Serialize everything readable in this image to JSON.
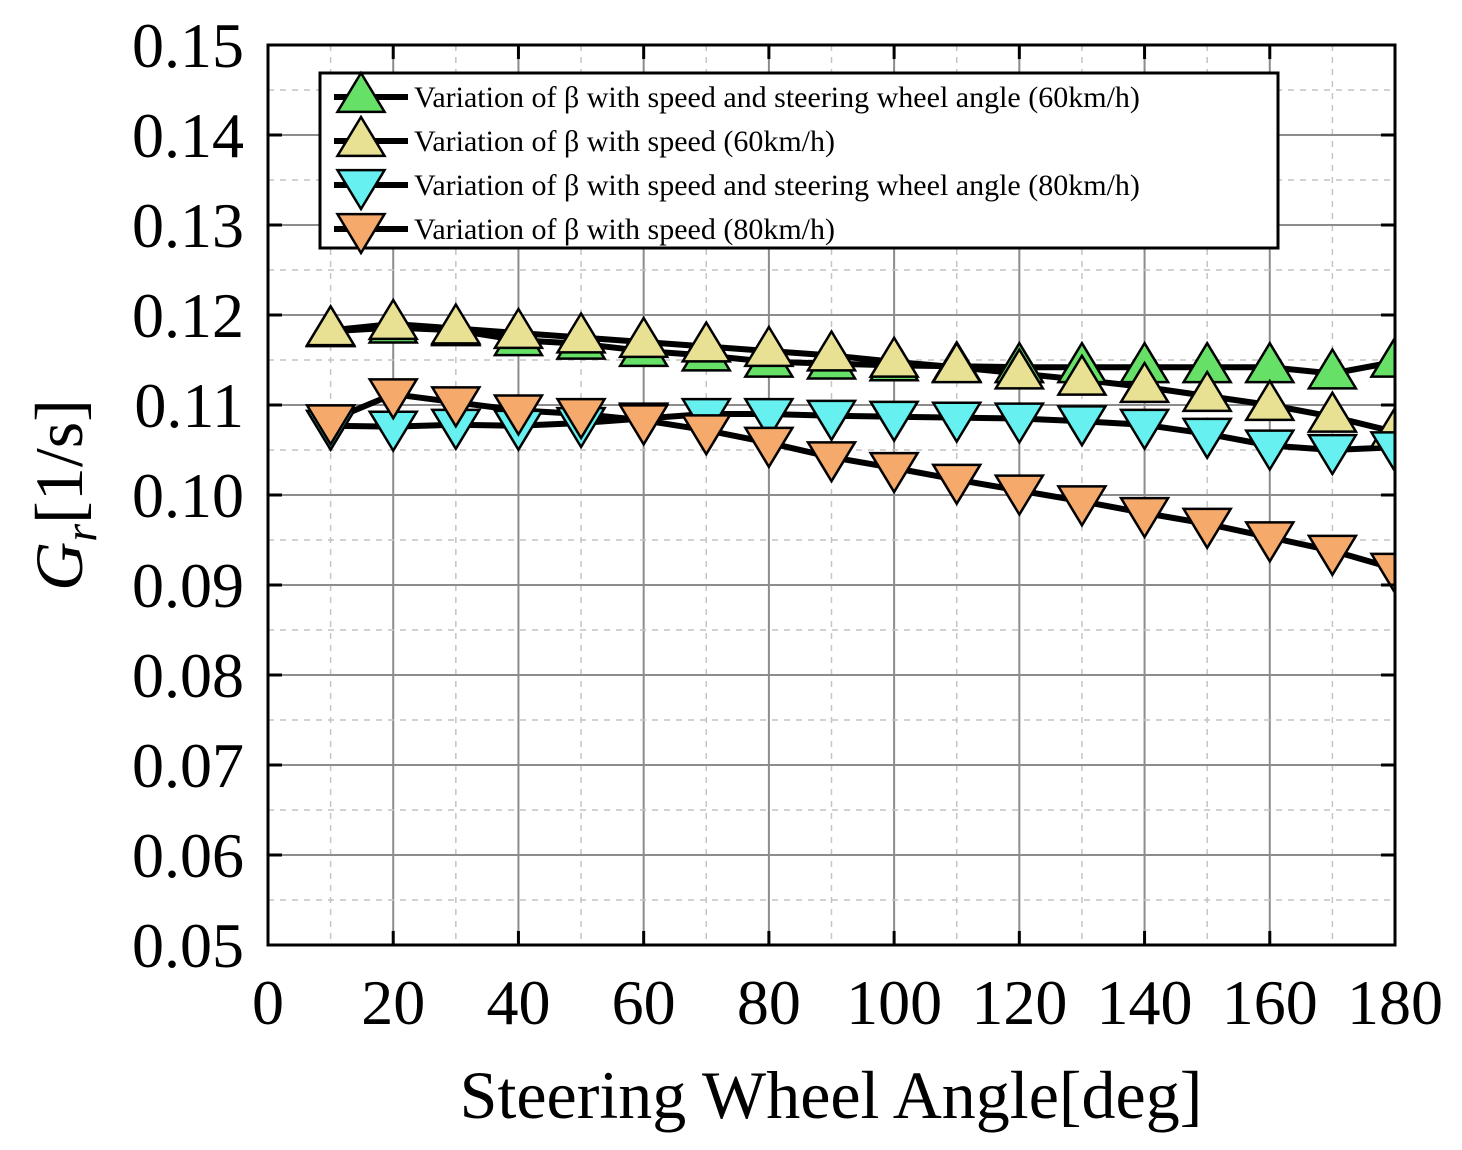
{
  "chart_data": {
    "type": "line",
    "xlabel": "Steering Wheel Angle[deg]",
    "ylabel": {
      "symbol": "G",
      "subscript": "r",
      "unit": "[1/s]"
    },
    "xlim": [
      0,
      180
    ],
    "ylim": [
      0.05,
      0.15
    ],
    "xticks": [
      0,
      20,
      40,
      60,
      80,
      100,
      120,
      140,
      160,
      180
    ],
    "xtick_labels": [
      "0",
      "20",
      "40",
      "60",
      "80",
      "100",
      "120",
      "140",
      "160",
      "180"
    ],
    "yticks": [
      0.05,
      0.06,
      0.07,
      0.08,
      0.09,
      0.1,
      0.11,
      0.12,
      0.13,
      0.14,
      0.15
    ],
    "ytick_labels": [
      "0.05",
      "0.06",
      "0.07",
      "0.08",
      "0.09",
      "0.10",
      "0.11",
      "0.12",
      "0.13",
      "0.14",
      "0.15"
    ],
    "grid": true,
    "legend_position": "top-left",
    "x": [
      10,
      20,
      30,
      40,
      50,
      60,
      70,
      80,
      90,
      100,
      110,
      120,
      130,
      140,
      150,
      160,
      170,
      180
    ],
    "series": [
      {
        "name": "Variation of β with speed and steering wheel angle (60km/h)",
        "marker": "triangle-up",
        "color": "#66e066",
        "values": [
          0.1182,
          0.1186,
          0.1183,
          0.1172,
          0.1168,
          0.116,
          0.1155,
          0.1148,
          0.1146,
          0.1144,
          0.1143,
          0.1142,
          0.1142,
          0.1142,
          0.1142,
          0.1142,
          0.1135,
          0.1148
        ]
      },
      {
        "name": "Variation of β with speed (60km/h)",
        "marker": "triangle-up",
        "color": "#e8e092",
        "values": [
          0.1183,
          0.119,
          0.1185,
          0.118,
          0.1175,
          0.117,
          0.1165,
          0.116,
          0.1155,
          0.1148,
          0.1142,
          0.1135,
          0.1128,
          0.112,
          0.111,
          0.11,
          0.1087,
          0.107
        ]
      },
      {
        "name": "Variation of β with speed and steering wheel angle (80km/h)",
        "marker": "triangle-down",
        "color": "#66f0f0",
        "values": [
          0.1077,
          0.1076,
          0.1078,
          0.1077,
          0.108,
          0.1085,
          0.109,
          0.109,
          0.1088,
          0.1087,
          0.1086,
          0.1085,
          0.1082,
          0.1078,
          0.1068,
          0.1055,
          0.105,
          0.1053
        ]
      },
      {
        "name": "Variation of β with speed (80km/h)",
        "marker": "triangle-down",
        "color": "#f5a96a",
        "values": [
          0.1083,
          0.1112,
          0.1103,
          0.1094,
          0.109,
          0.1083,
          0.1072,
          0.1058,
          0.1042,
          0.103,
          0.1017,
          0.1005,
          0.0993,
          0.098,
          0.0968,
          0.0953,
          0.0938,
          0.0918
        ]
      }
    ]
  }
}
